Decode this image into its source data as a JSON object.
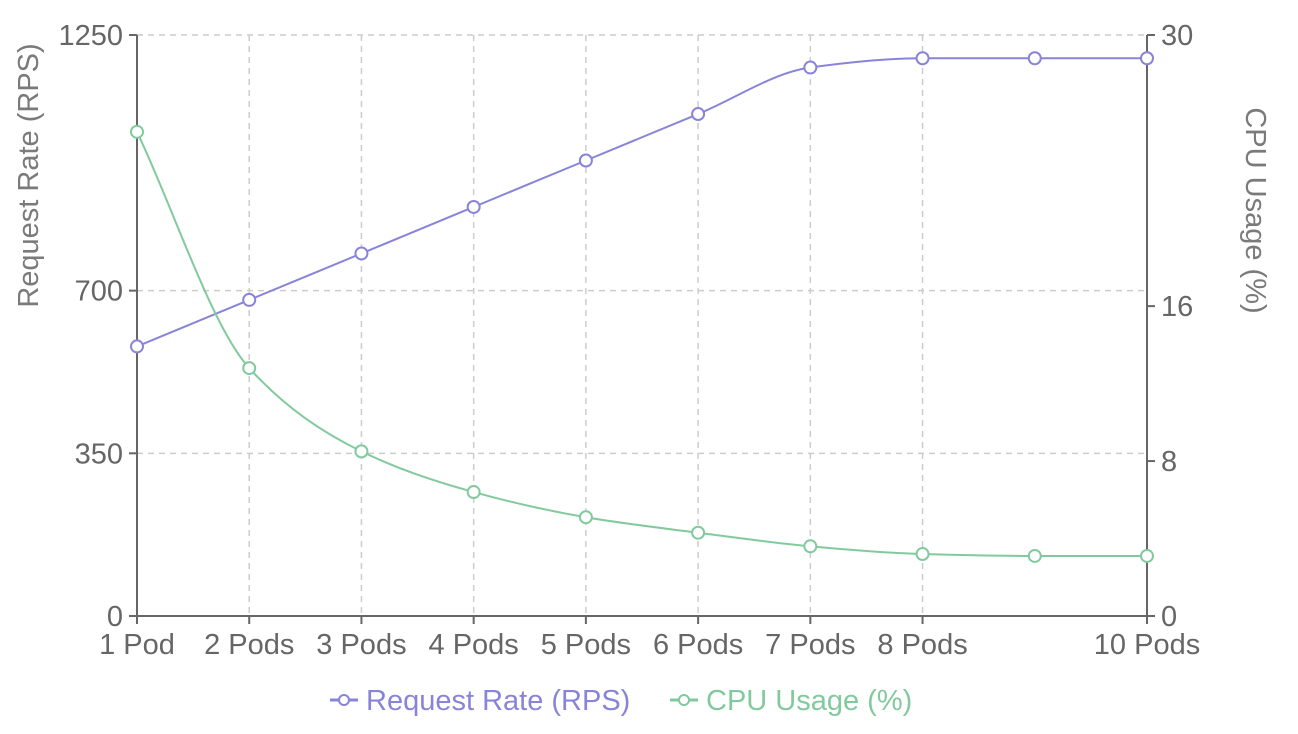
{
  "colors": {
    "request_rate": "#8884d8",
    "cpu_usage": "#82ca9d",
    "axis": "#666666",
    "grid": "#cccccc"
  },
  "chart_data": {
    "type": "line",
    "x": [
      1,
      2,
      3,
      4,
      5,
      6,
      7,
      8,
      9,
      10
    ],
    "x_tick_labels": [
      {
        "x": 1,
        "label": "1 Pod"
      },
      {
        "x": 2,
        "label": "2 Pods"
      },
      {
        "x": 3,
        "label": "3 Pods"
      },
      {
        "x": 4,
        "label": "4 Pods"
      },
      {
        "x": 5,
        "label": "5 Pods"
      },
      {
        "x": 6,
        "label": "6 Pods"
      },
      {
        "x": 7,
        "label": "7 Pods"
      },
      {
        "x": 8,
        "label": "8 Pods"
      },
      {
        "x": 10,
        "label": "10 Pods"
      }
    ],
    "xlim": [
      1,
      10
    ],
    "y_left": {
      "label": "Request Rate (RPS)",
      "lim": [
        0,
        1250
      ],
      "ticks": [
        0,
        350,
        700,
        1250
      ]
    },
    "y_right": {
      "label": "CPU Usage (%)",
      "lim": [
        0,
        30
      ],
      "ticks": [
        0,
        8,
        16,
        30
      ]
    },
    "series": [
      {
        "name": "Request Rate (RPS)",
        "axis": "left",
        "color_key": "request_rate",
        "values": [
          580,
          680,
          780,
          880,
          980,
          1080,
          1180,
          1200,
          1200,
          1200
        ]
      },
      {
        "name": "CPU Usage (%)",
        "axis": "right",
        "color_key": "cpu_usage",
        "values": [
          25,
          12.8,
          8.5,
          6.4,
          5.1,
          4.3,
          3.6,
          3.2,
          3.1,
          3.1
        ]
      }
    ],
    "grid": true,
    "legend_position": "bottom-center"
  }
}
